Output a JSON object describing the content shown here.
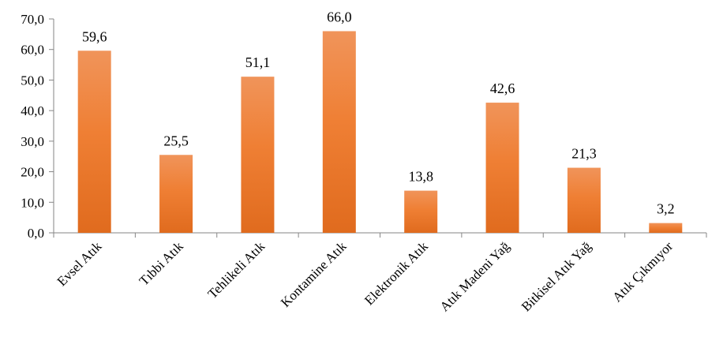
{
  "chart_data": {
    "type": "bar",
    "title": "",
    "xlabel": "",
    "ylabel": "",
    "categories": [
      "Evsel Atık",
      "Tıbbi Atık",
      "Tehlikeli Atık",
      "Kontamine Atık",
      "Elektronik Atık",
      "Atık Madeni Yağ",
      "Bitkisel Atık Yağ",
      "Atık Çıkmıyor"
    ],
    "values": [
      59.6,
      25.5,
      51.1,
      66.0,
      13.8,
      42.6,
      21.3,
      3.2
    ],
    "data_labels": [
      "59,6",
      "25,5",
      "51,1",
      "66,0",
      "13,8",
      "42,6",
      "21,3",
      "3,2"
    ],
    "ylim": [
      0,
      70
    ],
    "y_ticks": [
      "0,0",
      "10,0",
      "20,0",
      "30,0",
      "40,0",
      "50,0",
      "60,0",
      "70,0"
    ],
    "grid": false,
    "legend": "none",
    "colors": {
      "bar_top": "#f0945a",
      "bar_mid": "#ef7f34",
      "bar_bottom": "#e06b1e",
      "axis": "#868686"
    }
  }
}
